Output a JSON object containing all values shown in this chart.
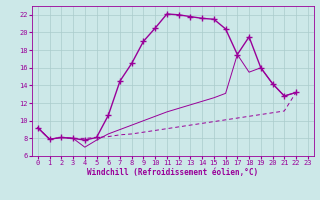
{
  "xlabel": "Windchill (Refroidissement éolien,°C)",
  "xlim": [
    -0.5,
    23.5
  ],
  "ylim": [
    6,
    23
  ],
  "xticks": [
    0,
    1,
    2,
    3,
    4,
    5,
    6,
    7,
    8,
    9,
    10,
    11,
    12,
    13,
    14,
    15,
    16,
    17,
    18,
    19,
    20,
    21,
    22,
    23
  ],
  "yticks": [
    6,
    8,
    10,
    12,
    14,
    16,
    18,
    20,
    22
  ],
  "bg_color": "#cce8e8",
  "line_color": "#990099",
  "grid_color": "#aacccc",
  "series1_x": [
    0,
    1,
    2,
    3,
    4,
    5,
    6,
    7,
    8,
    9,
    10,
    11,
    12,
    13,
    14,
    15,
    16,
    17,
    18,
    19,
    20,
    21,
    22
  ],
  "series1_y": [
    9.2,
    7.9,
    8.1,
    8.0,
    7.8,
    8.1,
    10.6,
    14.5,
    16.5,
    19.0,
    20.5,
    22.1,
    22.0,
    21.8,
    21.6,
    21.5,
    20.4,
    17.5,
    19.5,
    16.0,
    14.2,
    12.8,
    13.2
  ],
  "series2_x": [
    0,
    1,
    2,
    3,
    4,
    5,
    6,
    7,
    8,
    9,
    10,
    11,
    12,
    13,
    14,
    15,
    16,
    17,
    18,
    19,
    20,
    21,
    22
  ],
  "series2_y": [
    9.2,
    7.9,
    8.1,
    8.0,
    7.0,
    7.8,
    8.5,
    9.0,
    9.5,
    10.0,
    10.5,
    11.0,
    11.4,
    11.8,
    12.2,
    12.6,
    13.1,
    17.5,
    15.5,
    16.0,
    14.2,
    12.8,
    13.2
  ],
  "series3_x": [
    0,
    1,
    2,
    3,
    4,
    5,
    6,
    7,
    8,
    9,
    10,
    11,
    12,
    13,
    14,
    15,
    16,
    17,
    18,
    19,
    20,
    21,
    22
  ],
  "series3_y": [
    9.2,
    7.9,
    8.1,
    8.0,
    8.0,
    8.1,
    8.2,
    8.4,
    8.5,
    8.7,
    8.9,
    9.1,
    9.3,
    9.5,
    9.7,
    9.9,
    10.1,
    10.3,
    10.5,
    10.7,
    10.9,
    11.1,
    13.2
  ]
}
